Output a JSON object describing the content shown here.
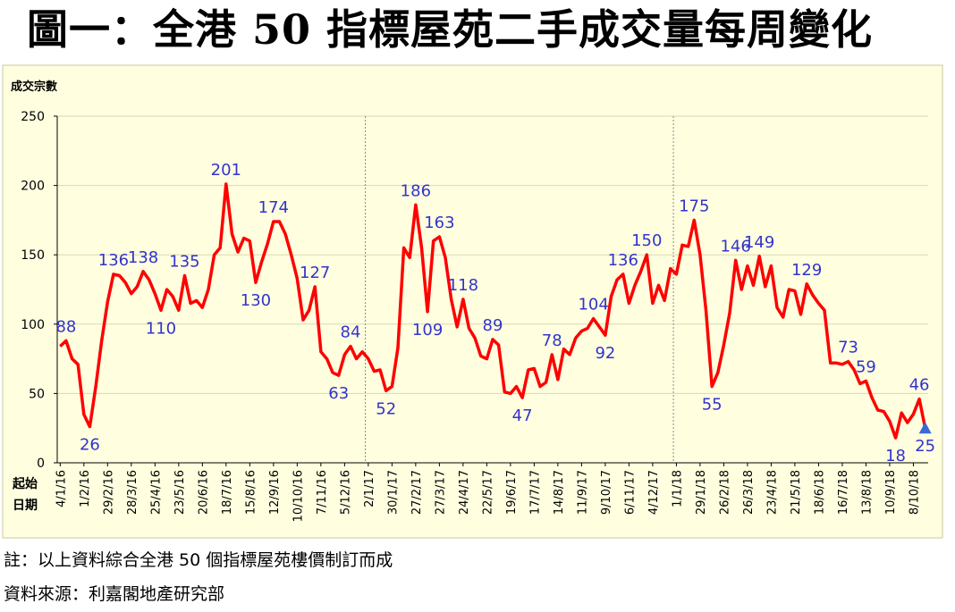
{
  "title": "圖一：全港 50 指標屋苑二手成交量每周變化",
  "note": "註：以上資料綜合全港 50 個指標屋苑樓價制訂而成",
  "source": "資料來源：利嘉閣地產研究部",
  "colors": {
    "line": "#ff0000",
    "label": "#3333cc",
    "plot_bg": "#ffffe0",
    "marker": "#3a6ad8"
  },
  "chart_data": {
    "type": "line",
    "title": "",
    "ylabel": "成交宗數",
    "xlabel": [
      "起始",
      "日期"
    ],
    "ylim": [
      0,
      250
    ],
    "yticks": [
      0,
      50,
      100,
      150,
      200,
      250
    ],
    "grid": true,
    "xticks": [
      "4/1/16",
      "1/2/16",
      "29/2/16",
      "28/3/16",
      "25/4/16",
      "23/5/16",
      "20/6/16",
      "18/7/16",
      "15/8/16",
      "12/9/16",
      "10/10/16",
      "7/11/16",
      "5/12/16",
      "2/1/17",
      "30/1/17",
      "27/2/17",
      "27/3/17",
      "24/4/17",
      "22/5/17",
      "19/6/17",
      "17/7/17",
      "14/8/17",
      "11/9/17",
      "9/10/17",
      "6/11/17",
      "4/12/17",
      "1/1/18",
      "29/1/18",
      "26/2/18",
      "26/3/18",
      "23/4/18",
      "21/5/18",
      "18/6/18",
      "16/7/18",
      "13/8/18",
      "10/9/18",
      "8/10/18"
    ],
    "year_dividers_at_week": [
      52,
      104
    ],
    "series": [
      {
        "values": [
          84,
          88,
          75,
          71,
          35,
          26,
          55,
          88,
          116,
          136,
          135,
          130,
          122,
          127,
          138,
          132,
          122,
          110,
          125,
          120,
          110,
          135,
          115,
          117,
          112,
          125,
          150,
          155,
          201,
          165,
          152,
          162,
          160,
          130,
          145,
          158,
          174,
          174,
          165,
          150,
          133,
          103,
          110,
          127,
          80,
          75,
          65,
          63,
          78,
          84,
          75,
          80,
          75,
          66,
          67,
          52,
          55,
          83,
          155,
          148,
          186,
          155,
          109,
          160,
          163,
          148,
          118,
          98,
          118,
          97,
          90,
          77,
          75,
          89,
          85,
          51,
          50,
          55,
          47,
          67,
          68,
          55,
          58,
          78,
          60,
          82,
          78,
          90,
          95,
          97,
          104,
          98,
          92,
          120,
          132,
          136,
          115,
          128,
          138,
          150,
          115,
          128,
          117,
          140,
          136,
          157,
          156,
          175,
          150,
          110,
          55,
          65,
          85,
          108,
          146,
          125,
          142,
          128,
          149,
          127,
          142,
          112,
          105,
          125,
          124,
          107,
          129,
          121,
          115,
          110,
          72,
          72,
          71,
          73,
          67,
          57,
          59,
          47,
          38,
          37,
          30,
          18,
          36,
          29,
          35,
          46,
          25
        ],
        "point_labels": [
          {
            "index": 1,
            "text": "88",
            "pos": "above"
          },
          {
            "index": 5,
            "text": "26",
            "pos": "below"
          },
          {
            "index": 9,
            "text": "136",
            "pos": "above"
          },
          {
            "index": 14,
            "text": "138",
            "pos": "above"
          },
          {
            "index": 17,
            "text": "110",
            "pos": "below"
          },
          {
            "index": 21,
            "text": "135",
            "pos": "above"
          },
          {
            "index": 28,
            "text": "201",
            "pos": "above"
          },
          {
            "index": 33,
            "text": "130",
            "pos": "below"
          },
          {
            "index": 36,
            "text": "174",
            "pos": "above"
          },
          {
            "index": 43,
            "text": "127",
            "pos": "above"
          },
          {
            "index": 47,
            "text": "63",
            "pos": "below"
          },
          {
            "index": 49,
            "text": "84",
            "pos": "above"
          },
          {
            "index": 55,
            "text": "52",
            "pos": "below"
          },
          {
            "index": 60,
            "text": "186",
            "pos": "above"
          },
          {
            "index": 62,
            "text": "109",
            "pos": "below"
          },
          {
            "index": 64,
            "text": "163",
            "pos": "above"
          },
          {
            "index": 68,
            "text": "118",
            "pos": "above"
          },
          {
            "index": 73,
            "text": "89",
            "pos": "above"
          },
          {
            "index": 78,
            "text": "47",
            "pos": "below"
          },
          {
            "index": 83,
            "text": "78",
            "pos": "above"
          },
          {
            "index": 90,
            "text": "104",
            "pos": "above"
          },
          {
            "index": 92,
            "text": "92",
            "pos": "below"
          },
          {
            "index": 95,
            "text": "136",
            "pos": "above"
          },
          {
            "index": 99,
            "text": "150",
            "pos": "above"
          },
          {
            "index": 107,
            "text": "175",
            "pos": "above"
          },
          {
            "index": 110,
            "text": "55",
            "pos": "below"
          },
          {
            "index": 114,
            "text": "146",
            "pos": "above"
          },
          {
            "index": 118,
            "text": "149",
            "pos": "above"
          },
          {
            "index": 126,
            "text": "129",
            "pos": "above"
          },
          {
            "index": 133,
            "text": "73",
            "pos": "above"
          },
          {
            "index": 136,
            "text": "59",
            "pos": "above"
          },
          {
            "index": 141,
            "text": "18",
            "pos": "below"
          },
          {
            "index": 145,
            "text": "46",
            "pos": "above"
          },
          {
            "index": 146,
            "text": "25",
            "pos": "below"
          }
        ],
        "last_point_marker": "triangle"
      }
    ]
  }
}
